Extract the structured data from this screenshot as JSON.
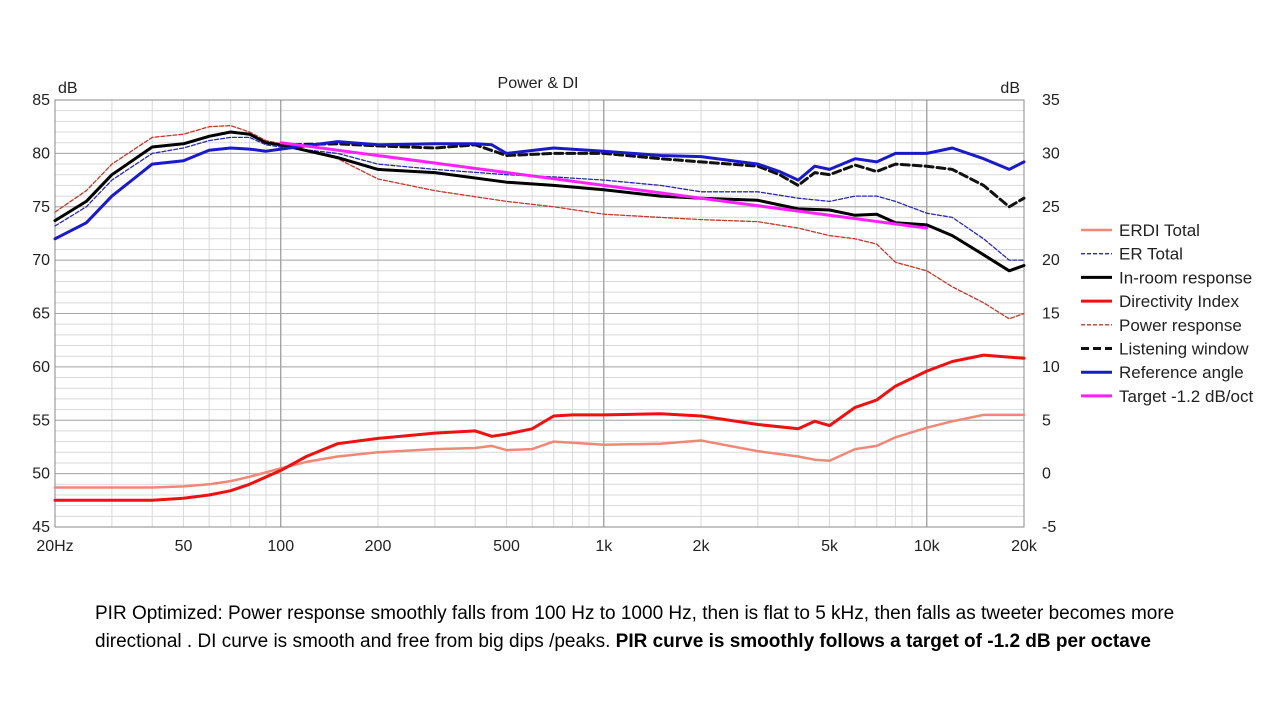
{
  "colors": {
    "erdi_total": "#f08878",
    "er_total": "#2a2ab0",
    "in_room": "#000000",
    "di": "#ee1111",
    "power": "#c0392b",
    "listening": "#111111",
    "reference": "#1a1ac8",
    "target": "#ff22ff"
  },
  "chart_data": {
    "type": "line",
    "title": "Power & DI",
    "x_scale": "log",
    "xlim": [
      20,
      20000
    ],
    "ylim_left": [
      45,
      85
    ],
    "ylim_right": [
      -5,
      35
    ],
    "ylabel_left": "dB",
    "ylabel_right": "dB",
    "x_tick_labels": [
      "20Hz",
      "50",
      "100",
      "200",
      "500",
      "1k",
      "2k",
      "5k",
      "10k",
      "20k"
    ],
    "x_tick_values": [
      20,
      50,
      100,
      200,
      500,
      1000,
      2000,
      5000,
      10000,
      20000
    ],
    "y_left_ticks": [
      45,
      50,
      55,
      60,
      65,
      70,
      75,
      80,
      85
    ],
    "y_right_ticks": [
      -5,
      0,
      5,
      10,
      15,
      20,
      25,
      30,
      35
    ],
    "grid": true,
    "legend_position": "right",
    "series": [
      {
        "key": "erdi_total",
        "name": "ERDI Total",
        "axis": "right",
        "style": "solid",
        "width": 2.5,
        "x": [
          20,
          30,
          40,
          50,
          60,
          70,
          80,
          100,
          120,
          150,
          200,
          300,
          400,
          450,
          500,
          600,
          700,
          800,
          1000,
          1500,
          2000,
          3000,
          4000,
          4500,
          5000,
          6000,
          7000,
          8000,
          10000,
          12000,
          15000,
          20000
        ],
        "y": [
          -1.3,
          -1.3,
          -1.3,
          -1.2,
          -1.0,
          -0.7,
          -0.3,
          0.5,
          1.1,
          1.6,
          2.0,
          2.3,
          2.4,
          2.6,
          2.2,
          2.3,
          3.0,
          2.9,
          2.7,
          2.8,
          3.1,
          2.1,
          1.6,
          1.3,
          1.2,
          2.3,
          2.6,
          3.4,
          4.3,
          4.9,
          5.5,
          5.5
        ]
      },
      {
        "key": "er_total",
        "name": "ER Total",
        "axis": "left",
        "style": "dashed",
        "width": 1.3,
        "x": [
          20,
          25,
          30,
          40,
          50,
          60,
          70,
          80,
          90,
          100,
          150,
          200,
          300,
          500,
          700,
          1000,
          1500,
          2000,
          3000,
          4000,
          5000,
          6000,
          7000,
          8000,
          10000,
          12000,
          15000,
          18000,
          20000
        ],
        "y": [
          73.2,
          75.0,
          77.5,
          80.0,
          80.5,
          81.2,
          81.5,
          81.5,
          80.8,
          80.6,
          80.0,
          79.0,
          78.5,
          78.0,
          77.8,
          77.5,
          77.0,
          76.4,
          76.4,
          75.8,
          75.5,
          76.0,
          76.0,
          75.5,
          74.4,
          74.0,
          72.0,
          70.0,
          70.0
        ]
      },
      {
        "key": "in_room",
        "name": "In-room response",
        "axis": "left",
        "style": "solid",
        "width": 3,
        "x": [
          20,
          25,
          30,
          40,
          50,
          60,
          70,
          80,
          90,
          100,
          150,
          200,
          300,
          500,
          700,
          1000,
          1500,
          2000,
          3000,
          4000,
          5000,
          6000,
          7000,
          8000,
          10000,
          12000,
          15000,
          18000,
          20000
        ],
        "y": [
          73.7,
          75.5,
          78.0,
          80.6,
          80.9,
          81.6,
          82.0,
          81.8,
          81.0,
          80.8,
          79.6,
          78.5,
          78.2,
          77.3,
          77.0,
          76.6,
          76.0,
          75.8,
          75.6,
          74.8,
          74.7,
          74.2,
          74.3,
          73.5,
          73.3,
          72.3,
          70.5,
          69.0,
          69.5
        ]
      },
      {
        "key": "di",
        "name": "Directivity Index",
        "axis": "right",
        "style": "solid",
        "width": 3,
        "x": [
          20,
          30,
          40,
          50,
          60,
          70,
          80,
          100,
          120,
          150,
          200,
          300,
          400,
          450,
          500,
          600,
          700,
          800,
          1000,
          1500,
          2000,
          3000,
          4000,
          4500,
          5000,
          6000,
          7000,
          8000,
          10000,
          12000,
          15000,
          20000
        ],
        "y": [
          -2.5,
          -2.5,
          -2.5,
          -2.3,
          -2.0,
          -1.6,
          -1.0,
          0.3,
          1.6,
          2.8,
          3.3,
          3.8,
          4.0,
          3.5,
          3.7,
          4.2,
          5.4,
          5.5,
          5.5,
          5.6,
          5.4,
          4.6,
          4.2,
          4.9,
          4.5,
          6.2,
          6.9,
          8.2,
          9.6,
          10.5,
          11.1,
          10.8
        ]
      },
      {
        "key": "power",
        "name": "Power response",
        "axis": "left",
        "style": "dashed",
        "width": 1.3,
        "x": [
          20,
          25,
          30,
          40,
          50,
          60,
          70,
          80,
          90,
          100,
          150,
          200,
          300,
          500,
          700,
          1000,
          1500,
          2000,
          3000,
          4000,
          5000,
          6000,
          7000,
          8000,
          10000,
          12000,
          15000,
          18000,
          20000
        ],
        "y": [
          74.5,
          76.5,
          79.0,
          81.5,
          81.8,
          82.5,
          82.6,
          82.0,
          81.2,
          80.9,
          79.5,
          77.6,
          76.5,
          75.5,
          75.0,
          74.3,
          74.0,
          73.8,
          73.6,
          73.0,
          72.3,
          72.0,
          71.5,
          69.8,
          69.0,
          67.5,
          66.0,
          64.5,
          65.0
        ]
      },
      {
        "key": "listening",
        "name": "Listening window",
        "axis": "left",
        "style": "dashed-thick",
        "width": 3,
        "x": [
          100,
          150,
          200,
          300,
          400,
          500,
          700,
          1000,
          1500,
          2000,
          3000,
          3500,
          4000,
          4500,
          5000,
          6000,
          7000,
          8000,
          10000,
          12000,
          15000,
          18000,
          20000
        ],
        "y": [
          80.8,
          80.9,
          80.7,
          80.5,
          80.8,
          79.8,
          80.0,
          80.0,
          79.5,
          79.2,
          78.8,
          78.0,
          77.0,
          78.2,
          78.0,
          78.9,
          78.3,
          79.0,
          78.8,
          78.5,
          77.0,
          75.0,
          75.8
        ]
      },
      {
        "key": "reference",
        "name": "Reference angle",
        "axis": "left",
        "style": "solid",
        "width": 3,
        "x": [
          20,
          25,
          30,
          40,
          50,
          60,
          70,
          80,
          90,
          100,
          150,
          200,
          300,
          400,
          450,
          500,
          700,
          1000,
          1500,
          2000,
          3000,
          3500,
          4000,
          4500,
          5000,
          6000,
          7000,
          8000,
          10000,
          12000,
          15000,
          18000,
          20000
        ],
        "y": [
          72.0,
          73.5,
          76.0,
          79.0,
          79.3,
          80.3,
          80.5,
          80.4,
          80.2,
          80.4,
          81.1,
          80.8,
          80.9,
          80.9,
          80.8,
          80.0,
          80.5,
          80.2,
          79.8,
          79.7,
          79.0,
          78.3,
          77.5,
          78.8,
          78.5,
          79.5,
          79.2,
          80.0,
          80.0,
          80.5,
          79.5,
          78.5,
          79.2
        ]
      },
      {
        "key": "target",
        "name": "Target -1.2 dB/oct",
        "axis": "left",
        "style": "solid",
        "width": 3,
        "x": [
          100,
          10000
        ],
        "y": [
          81.0,
          73.0
        ]
      }
    ]
  },
  "caption": {
    "normal": "PIR Optimized:   Power response smoothly falls from 100 Hz to 1000 Hz, then is flat to 5 kHz, then falls as tweeter becomes more directional .  DI curve is smooth and free from big dips /peaks.  ",
    "bold": "PIR curve is smoothly follows a target of -1.2 dB per octave"
  }
}
